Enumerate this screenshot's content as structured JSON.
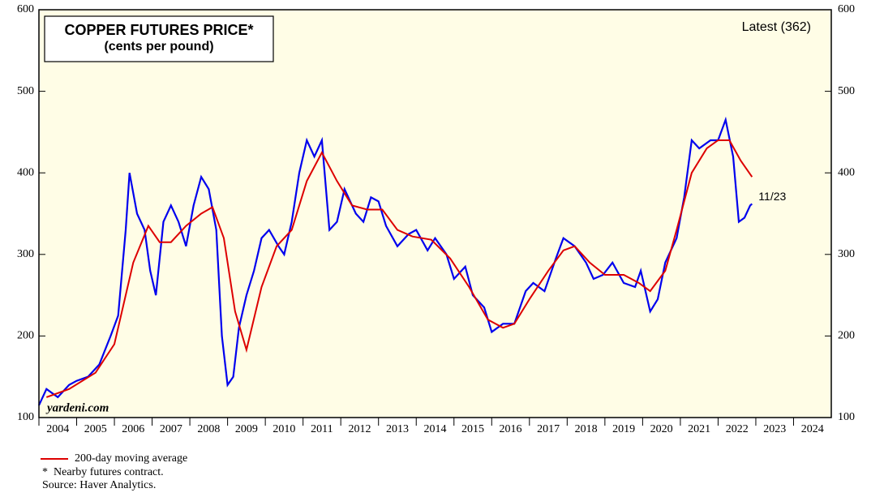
{
  "chart_data": {
    "type": "line",
    "title": "COPPER FUTURES PRICE*",
    "subtitle": "(cents per pound)",
    "annotation": "Latest (362)",
    "end_label": "11/23",
    "watermark": "yardeni.com",
    "footnote": "*  Nearby futures contract.",
    "source": "Source: Haver Analytics.",
    "xlim": [
      2004,
      2025
    ],
    "xticks": [
      2004,
      2005,
      2006,
      2007,
      2008,
      2009,
      2010,
      2011,
      2012,
      2013,
      2014,
      2015,
      2016,
      2017,
      2018,
      2019,
      2020,
      2021,
      2022,
      2023,
      2024
    ],
    "ylim": [
      100,
      600
    ],
    "yticks": [
      100,
      200,
      300,
      400,
      500,
      600
    ],
    "background": "#fffde6",
    "series": [
      {
        "color": "#0000ee",
        "x": [
          2004.0,
          2004.2,
          2004.5,
          2004.8,
          2005.0,
          2005.3,
          2005.6,
          2005.9,
          2006.1,
          2006.3,
          2006.4,
          2006.6,
          2006.8,
          2006.95,
          2007.1,
          2007.3,
          2007.5,
          2007.7,
          2007.9,
          2008.1,
          2008.3,
          2008.5,
          2008.7,
          2008.85,
          2009.0,
          2009.15,
          2009.3,
          2009.5,
          2009.7,
          2009.9,
          2010.1,
          2010.35,
          2010.5,
          2010.7,
          2010.9,
          2011.1,
          2011.3,
          2011.5,
          2011.7,
          2011.9,
          2012.1,
          2012.4,
          2012.6,
          2012.8,
          2013.0,
          2013.2,
          2013.5,
          2013.8,
          2014.0,
          2014.3,
          2014.5,
          2014.8,
          2015.0,
          2015.3,
          2015.5,
          2015.8,
          2016.0,
          2016.3,
          2016.6,
          2016.9,
          2017.1,
          2017.4,
          2017.7,
          2017.9,
          2018.2,
          2018.5,
          2018.7,
          2018.95,
          2019.2,
          2019.5,
          2019.8,
          2019.95,
          2020.2,
          2020.4,
          2020.6,
          2020.9,
          2021.1,
          2021.3,
          2021.5,
          2021.8,
          2022.0,
          2022.2,
          2022.4,
          2022.55,
          2022.7,
          2022.85,
          2022.9
        ],
        "values": [
          115,
          135,
          125,
          140,
          145,
          150,
          165,
          200,
          225,
          330,
          400,
          350,
          330,
          280,
          250,
          340,
          360,
          340,
          310,
          360,
          395,
          380,
          330,
          200,
          140,
          150,
          210,
          250,
          280,
          320,
          330,
          310,
          300,
          340,
          400,
          440,
          420,
          440,
          330,
          340,
          380,
          350,
          340,
          370,
          365,
          335,
          310,
          325,
          330,
          305,
          320,
          300,
          270,
          285,
          250,
          235,
          205,
          215,
          215,
          255,
          265,
          255,
          295,
          320,
          310,
          290,
          270,
          275,
          290,
          265,
          260,
          280,
          230,
          245,
          290,
          320,
          370,
          440,
          430,
          440,
          440,
          465,
          420,
          340,
          345,
          360,
          362
        ]
      },
      {
        "name": "200-day moving average",
        "color": "#dd0000",
        "x": [
          2004.2,
          2004.8,
          2005.5,
          2006.0,
          2006.5,
          2006.9,
          2007.2,
          2007.5,
          2007.9,
          2008.3,
          2008.6,
          2008.9,
          2009.2,
          2009.5,
          2009.9,
          2010.3,
          2010.7,
          2011.1,
          2011.5,
          2011.9,
          2012.3,
          2012.7,
          2013.1,
          2013.5,
          2013.9,
          2014.4,
          2014.9,
          2015.4,
          2015.9,
          2016.3,
          2016.6,
          2017.0,
          2017.5,
          2017.9,
          2018.2,
          2018.6,
          2019.0,
          2019.5,
          2019.9,
          2020.2,
          2020.6,
          2020.9,
          2021.3,
          2021.7,
          2022.0,
          2022.3,
          2022.6,
          2022.9
        ],
        "values": [
          125,
          135,
          155,
          190,
          290,
          335,
          315,
          315,
          335,
          350,
          358,
          320,
          230,
          183,
          260,
          310,
          330,
          390,
          425,
          390,
          360,
          355,
          355,
          330,
          322,
          318,
          295,
          260,
          220,
          210,
          215,
          245,
          280,
          305,
          310,
          290,
          275,
          275,
          265,
          255,
          280,
          330,
          400,
          430,
          440,
          440,
          415,
          395
        ]
      }
    ]
  }
}
